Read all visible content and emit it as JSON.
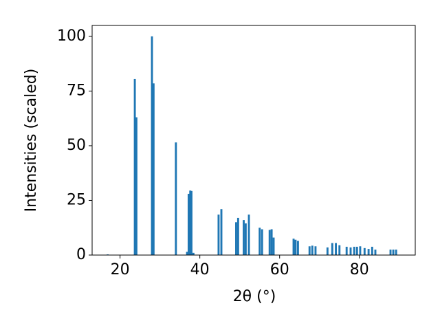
{
  "chart_data": {
    "type": "bar",
    "xlabel": "2θ (°)",
    "ylabel": "Intensities (scaled)",
    "x": [
      16.9,
      23.7,
      24.1,
      28.0,
      28.4,
      34.0,
      36.8,
      37.2,
      37.6,
      37.9,
      38.4,
      44.7,
      45.4,
      49.1,
      49.6,
      51.0,
      51.5,
      52.3,
      55.0,
      55.6,
      57.5,
      58.0,
      58.5,
      63.5,
      64.0,
      64.6,
      67.5,
      68.2,
      69.0,
      72.0,
      73.2,
      74.1,
      75.0,
      76.8,
      77.8,
      78.7,
      79.4,
      80.2,
      81.3,
      82.3,
      83.2,
      84.0,
      87.8,
      88.5,
      89.2
    ],
    "values": [
      0.3,
      80.5,
      63,
      100,
      78.5,
      51.5,
      1.5,
      28,
      29.5,
      29.3,
      1,
      18.5,
      21,
      15,
      17,
      16,
      14.5,
      18.5,
      12.5,
      11.8,
      11.5,
      11.8,
      8,
      7.5,
      7,
      6.5,
      4,
      4.3,
      4,
      3.5,
      5.5,
      5.5,
      4.5,
      3.8,
      3.5,
      3.8,
      3.8,
      4,
      3.2,
      2.8,
      3.8,
      2.5,
      2.5,
      2.5,
      2.5
    ],
    "color": "#1f77b4",
    "xlim": [
      13,
      94
    ],
    "xticks": [
      20,
      40,
      60,
      80
    ],
    "ylim": [
      0,
      105
    ],
    "yticks": [
      0,
      25,
      50,
      75,
      100
    ],
    "grid": false
  }
}
